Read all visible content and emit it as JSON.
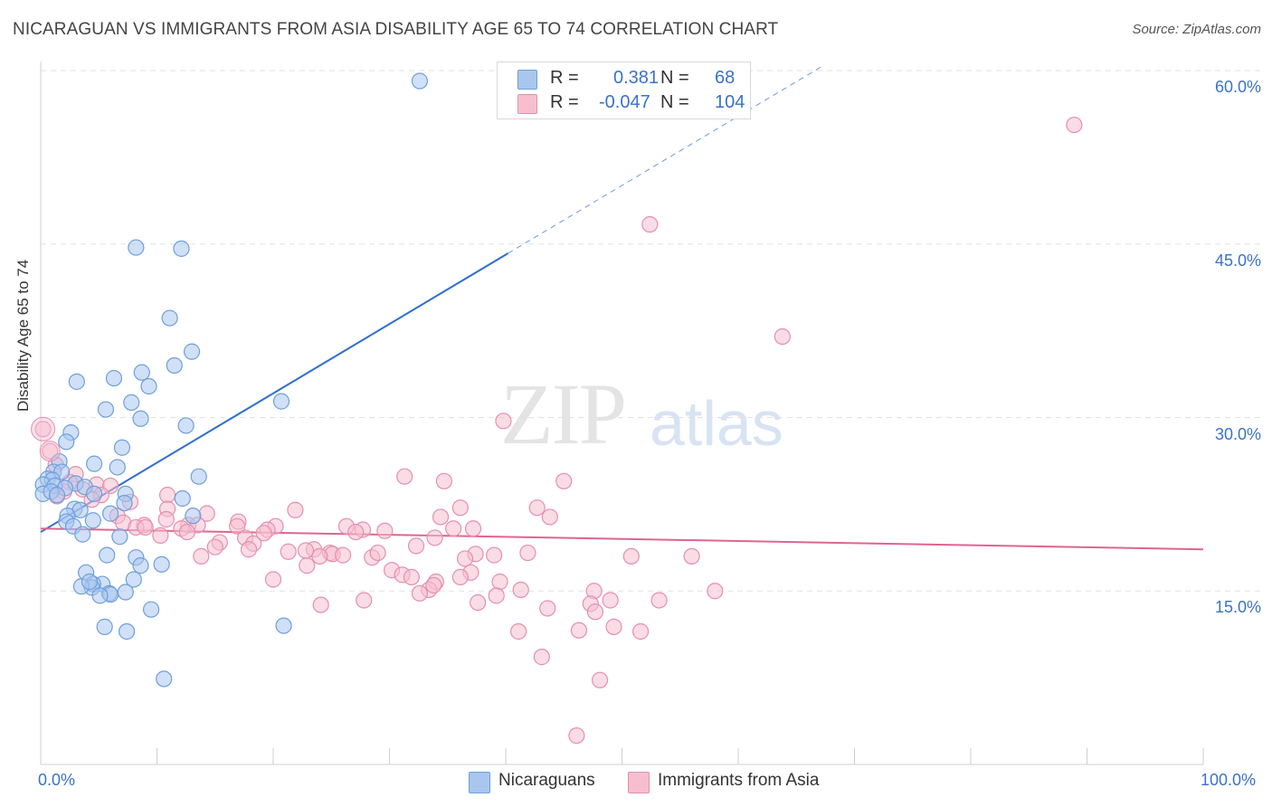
{
  "title": "NICARAGUAN VS IMMIGRANTS FROM ASIA DISABILITY AGE 65 TO 74 CORRELATION CHART",
  "source": "Source: ZipAtlas.com",
  "watermark": {
    "part1": "ZIP",
    "part2": "atlas"
  },
  "legend_top": {
    "rows": [
      {
        "r_label": "R =",
        "r_value": "0.381",
        "n_label": "N =",
        "n_value": "68"
      },
      {
        "r_label": "R =",
        "r_value": "-0.047",
        "n_label": "N =",
        "n_value": "104"
      }
    ]
  },
  "colors": {
    "blue_fill": "#a9c6ee",
    "blue_stroke": "#6f9fdc",
    "blue_line": "#2f6fcf",
    "pink_fill": "#f6bfd0",
    "pink_stroke": "#e58fae",
    "pink_line": "#e0648f",
    "tick_text": "#3a72c9",
    "grid": "#e1e1e1"
  },
  "chart_data": {
    "type": "scatter",
    "title": "NICARAGUAN VS IMMIGRANTS FROM ASIA DISABILITY AGE 65 TO 74 CORRELATION CHART",
    "xlabel": "",
    "ylabel": "Disability Age 65 to 74",
    "xlim": [
      0,
      100
    ],
    "ylim": [
      0,
      60
    ],
    "x_tick_labels": [
      "0.0%",
      "100.0%"
    ],
    "y_ticks": [
      15,
      30,
      45,
      60
    ],
    "y_tick_labels": [
      "15.0%",
      "30.0%",
      "45.0%",
      "60.0%"
    ],
    "grid": true,
    "legend_position": "bottom",
    "series": [
      {
        "name": "Nicaraguans",
        "R": 0.381,
        "N": 68,
        "trend": {
          "x": [
            0,
            40.2
          ],
          "y": [
            20.1,
            44.2
          ],
          "dashed_to": {
            "x": 67.1,
            "y": 60.3
          }
        },
        "points": [
          [
            32.6,
            59.1
          ],
          [
            8.2,
            44.7
          ],
          [
            12.1,
            44.6
          ],
          [
            11.1,
            38.6
          ],
          [
            13.0,
            35.7
          ],
          [
            11.5,
            34.5
          ],
          [
            8.7,
            33.9
          ],
          [
            6.3,
            33.4
          ],
          [
            3.1,
            33.1
          ],
          [
            9.3,
            32.7
          ],
          [
            20.7,
            31.4
          ],
          [
            7.8,
            31.3
          ],
          [
            5.6,
            30.7
          ],
          [
            8.6,
            29.9
          ],
          [
            12.5,
            29.3
          ],
          [
            2.6,
            28.7
          ],
          [
            2.2,
            27.9
          ],
          [
            7.0,
            27.4
          ],
          [
            1.6,
            26.2
          ],
          [
            4.6,
            26.0
          ],
          [
            6.6,
            25.7
          ],
          [
            1.1,
            25.3
          ],
          [
            1.8,
            25.3
          ],
          [
            13.6,
            24.9
          ],
          [
            0.6,
            24.7
          ],
          [
            1.0,
            24.6
          ],
          [
            3.0,
            24.3
          ],
          [
            0.2,
            24.2
          ],
          [
            1.2,
            24.1
          ],
          [
            3.8,
            24.0
          ],
          [
            2.1,
            23.9
          ],
          [
            0.2,
            23.4
          ],
          [
            0.9,
            23.6
          ],
          [
            1.4,
            23.3
          ],
          [
            4.6,
            23.4
          ],
          [
            7.3,
            23.4
          ],
          [
            12.2,
            23.0
          ],
          [
            7.2,
            22.6
          ],
          [
            2.9,
            22.1
          ],
          [
            3.4,
            22.0
          ],
          [
            2.3,
            21.5
          ],
          [
            6.0,
            21.7
          ],
          [
            13.1,
            21.5
          ],
          [
            2.2,
            21.0
          ],
          [
            4.5,
            21.1
          ],
          [
            2.8,
            20.6
          ],
          [
            3.6,
            19.9
          ],
          [
            6.8,
            19.7
          ],
          [
            5.7,
            18.1
          ],
          [
            8.2,
            17.9
          ],
          [
            8.6,
            17.2
          ],
          [
            10.4,
            17.3
          ],
          [
            3.9,
            16.6
          ],
          [
            5.3,
            15.6
          ],
          [
            8.0,
            16.0
          ],
          [
            4.5,
            15.6
          ],
          [
            4.4,
            15.3
          ],
          [
            3.5,
            15.4
          ],
          [
            5.9,
            14.8
          ],
          [
            6.0,
            14.7
          ],
          [
            7.3,
            14.9
          ],
          [
            5.1,
            14.6
          ],
          [
            9.5,
            13.4
          ],
          [
            20.9,
            12.0
          ],
          [
            5.5,
            11.9
          ],
          [
            7.4,
            11.5
          ],
          [
            10.6,
            7.4
          ],
          [
            4.2,
            15.8
          ]
        ]
      },
      {
        "name": "Immigrants from Asia",
        "R": -0.047,
        "N": 104,
        "trend": {
          "x": [
            0,
            100
          ],
          "y": [
            20.4,
            18.6
          ]
        },
        "points": [
          [
            88.9,
            55.3
          ],
          [
            52.4,
            46.7
          ],
          [
            63.8,
            37.0
          ],
          [
            39.8,
            29.7
          ],
          [
            0.2,
            29.0
          ],
          [
            0.8,
            27.1
          ],
          [
            1.3,
            25.9
          ],
          [
            3.0,
            25.1
          ],
          [
            31.3,
            24.9
          ],
          [
            34.7,
            24.5
          ],
          [
            45.0,
            24.5
          ],
          [
            2.5,
            24.4
          ],
          [
            4.8,
            24.2
          ],
          [
            6.0,
            24.1
          ],
          [
            3.6,
            23.8
          ],
          [
            2.0,
            23.6
          ],
          [
            5.2,
            23.3
          ],
          [
            1.4,
            23.2
          ],
          [
            10.9,
            23.3
          ],
          [
            4.4,
            22.9
          ],
          [
            7.7,
            22.7
          ],
          [
            36.1,
            22.2
          ],
          [
            42.7,
            22.2
          ],
          [
            10.9,
            22.1
          ],
          [
            21.9,
            22.0
          ],
          [
            14.3,
            21.7
          ],
          [
            6.6,
            21.5
          ],
          [
            34.4,
            21.4
          ],
          [
            43.8,
            21.4
          ],
          [
            7.1,
            20.9
          ],
          [
            10.8,
            21.2
          ],
          [
            17.0,
            21.0
          ],
          [
            8.9,
            20.7
          ],
          [
            12.7,
            20.7
          ],
          [
            13.5,
            20.7
          ],
          [
            20.2,
            20.6
          ],
          [
            16.9,
            20.6
          ],
          [
            26.3,
            20.6
          ],
          [
            8.2,
            20.5
          ],
          [
            9.0,
            20.5
          ],
          [
            12.1,
            20.4
          ],
          [
            27.7,
            20.3
          ],
          [
            35.5,
            20.4
          ],
          [
            37.2,
            20.4
          ],
          [
            19.5,
            20.3
          ],
          [
            27.1,
            20.1
          ],
          [
            29.6,
            20.2
          ],
          [
            12.6,
            20.1
          ],
          [
            19.2,
            20.0
          ],
          [
            10.3,
            19.8
          ],
          [
            17.6,
            19.6
          ],
          [
            33.9,
            19.6
          ],
          [
            15.4,
            19.2
          ],
          [
            18.3,
            19.1
          ],
          [
            15.0,
            18.8
          ],
          [
            23.5,
            18.6
          ],
          [
            32.3,
            18.9
          ],
          [
            17.9,
            18.6
          ],
          [
            21.3,
            18.4
          ],
          [
            24.9,
            18.3
          ],
          [
            41.9,
            18.3
          ],
          [
            25.1,
            18.2
          ],
          [
            26.0,
            18.1
          ],
          [
            24.0,
            18.0
          ],
          [
            37.4,
            18.2
          ],
          [
            13.8,
            18.0
          ],
          [
            39.0,
            18.1
          ],
          [
            50.8,
            18.0
          ],
          [
            56.0,
            18.0
          ],
          [
            28.5,
            17.9
          ],
          [
            36.5,
            17.8
          ],
          [
            22.9,
            17.2
          ],
          [
            30.2,
            16.8
          ],
          [
            37.0,
            16.6
          ],
          [
            31.1,
            16.4
          ],
          [
            36.1,
            16.2
          ],
          [
            31.9,
            16.2
          ],
          [
            20.0,
            16.0
          ],
          [
            39.5,
            15.8
          ],
          [
            34.0,
            15.8
          ],
          [
            47.6,
            15.0
          ],
          [
            41.3,
            15.1
          ],
          [
            33.4,
            15.1
          ],
          [
            32.6,
            14.8
          ],
          [
            39.2,
            14.6
          ],
          [
            27.8,
            14.2
          ],
          [
            37.6,
            14.0
          ],
          [
            49.0,
            14.2
          ],
          [
            47.3,
            13.9
          ],
          [
            24.1,
            13.8
          ],
          [
            43.6,
            13.5
          ],
          [
            47.7,
            13.2
          ],
          [
            49.3,
            11.9
          ],
          [
            41.1,
            11.5
          ],
          [
            46.3,
            11.6
          ],
          [
            51.6,
            11.5
          ],
          [
            43.1,
            9.3
          ],
          [
            48.1,
            7.3
          ],
          [
            46.1,
            2.5
          ],
          [
            53.2,
            14.2
          ],
          [
            58.0,
            15.0
          ],
          [
            22.8,
            18.5
          ],
          [
            33.8,
            15.5
          ],
          [
            29.0,
            18.3
          ]
        ]
      }
    ]
  }
}
